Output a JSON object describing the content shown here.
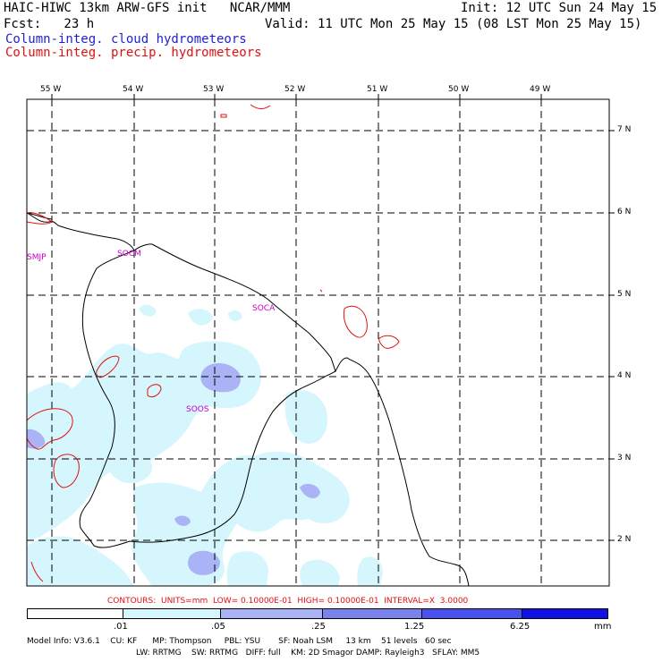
{
  "header": {
    "title_left": "HAIC-HIWC 13km ARW-GFS init   NCAR/MMM",
    "init_label": "Init: 12 UTC Sun 24 May 15",
    "fcst_label": "Fcst:   23 h",
    "valid_label": "Valid: 11 UTC Mon 25 May 15 (08 LST Mon 25 May 15)",
    "legend_cloud": "Column-integ. cloud hydrometeors",
    "legend_precip": "Column-integ. precip. hydrometeors"
  },
  "colors": {
    "cloud_text": "#1f1fd0",
    "precip_text": "#e01010",
    "station_label": "#cc00cc",
    "fill_level1": "#d6f6fd",
    "fill_level2": "#a9b3f5",
    "fill_level3": "#7a82ee",
    "fill_level4": "#4a50ea",
    "fill_level5": "#1111e6"
  },
  "map": {
    "lon_labels": [
      "55 W",
      "54 W",
      "53 W",
      "52 W",
      "51 W",
      "50 W",
      "49 W"
    ],
    "lat_labels": [
      "7 N",
      "6 N",
      "5 N",
      "4 N",
      "3 N",
      "2 N"
    ],
    "stations": [
      "SMJP",
      "SOCM",
      "SOCA",
      "SOOS"
    ]
  },
  "contour_info": "CONTOURS:  UNITS=mm  LOW= 0.10000E-01  HIGH= 0.10000E-01  INTERVAL=X  3.0000",
  "colorbar": {
    "labels": [
      ".01",
      ".05",
      ".25",
      "1.25",
      "6.25"
    ],
    "units": "mm"
  },
  "model_info": {
    "line1": "Model Info: V3.6.1    CU: KF      MP: Thompson     PBL: YSU       SF: Noah LSM     13 km    51 levels   60 sec",
    "line2": "LW: RRTMG    SW: RRTMG   DIFF: full    KM: 2D Smagor DAMP: Rayleigh3   SFLAY: MM5"
  }
}
